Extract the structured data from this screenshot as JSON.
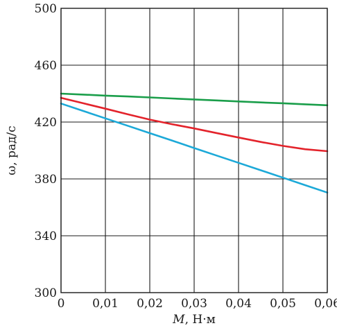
{
  "chart_data": {
    "type": "line",
    "title": "",
    "xlabel_symbol": "M",
    "xlabel_unit": ", Н·м",
    "ylabel": "ω, рад/с",
    "xlim": [
      0,
      0.06
    ],
    "ylim": [
      300,
      500
    ],
    "x_ticks": [
      0,
      0.01,
      0.02,
      0.03,
      0.04,
      0.05,
      0.06
    ],
    "x_tick_labels": [
      "0",
      "0,01",
      "0,02",
      "0,03",
      "0,04",
      "0,05",
      "0,06"
    ],
    "y_ticks": [
      300,
      340,
      380,
      420,
      460,
      500
    ],
    "y_tick_labels": [
      "300",
      "340",
      "380",
      "420",
      "460",
      "500"
    ],
    "grid": true,
    "legend": "none",
    "series": [
      {
        "color": "#1a9e4a",
        "x": [
          0,
          0.005,
          0.01,
          0.015,
          0.02,
          0.025,
          0.03,
          0.035,
          0.04,
          0.045,
          0.05,
          0.055,
          0.06
        ],
        "y": [
          440,
          439.3,
          438.6,
          438,
          437.3,
          436.6,
          435.9,
          435.2,
          434.5,
          433.8,
          433.2,
          432.5,
          431.8
        ]
      },
      {
        "color": "#e3232b",
        "x": [
          0,
          0.005,
          0.01,
          0.015,
          0.02,
          0.025,
          0.03,
          0.035,
          0.04,
          0.045,
          0.05,
          0.055,
          0.06
        ],
        "y": [
          437,
          433.2,
          429.4,
          425.5,
          421.7,
          418.5,
          415.5,
          412.3,
          409.1,
          406,
          403.2,
          400.9,
          399.5
        ]
      },
      {
        "color": "#1ca9d8",
        "x": [
          0,
          0.005,
          0.01,
          0.015,
          0.02,
          0.025,
          0.03,
          0.035,
          0.04,
          0.045,
          0.05,
          0.055,
          0.06
        ],
        "y": [
          433,
          427.8,
          422.6,
          417.4,
          412.2,
          407,
          401.7,
          396.5,
          391.3,
          386.1,
          380.9,
          375.6,
          370.4
        ]
      }
    ]
  }
}
